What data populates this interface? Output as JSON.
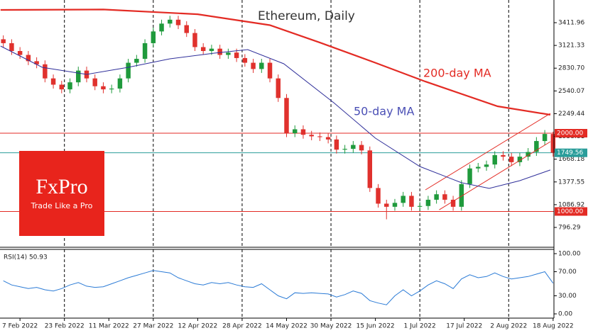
{
  "chart_data": [
    {
      "type": "candlestick",
      "title": "Ethereum, Daily",
      "x": [
        -6,
        -3,
        0,
        3,
        6,
        9,
        12,
        15,
        18,
        21,
        24,
        27,
        30,
        33,
        36,
        39,
        42,
        45,
        48,
        51,
        54,
        57,
        60,
        63,
        66,
        69,
        72,
        75,
        78,
        81,
        84,
        87,
        90,
        93,
        96,
        99,
        102,
        105,
        108,
        111,
        114,
        117,
        120,
        123,
        126,
        129,
        132,
        135,
        138,
        141,
        144,
        147,
        150,
        153,
        156,
        159,
        162,
        165,
        168,
        171,
        174,
        177,
        180,
        183,
        186,
        189,
        192
      ],
      "open": [
        3200,
        3150,
        3050,
        3000,
        2920,
        2880,
        2700,
        2620,
        2560,
        2650,
        2800,
        2700,
        2600,
        2560,
        2570,
        2700,
        2900,
        2950,
        3150,
        3300,
        3400,
        3450,
        3380,
        3280,
        3100,
        3050,
        3080,
        3000,
        3030,
        2960,
        2900,
        2820,
        2900,
        2700,
        2450,
        2000,
        2050,
        1980,
        1960,
        1950,
        1920,
        1790,
        1800,
        1850,
        1780,
        1300,
        1100,
        1060,
        1110,
        1200,
        1060,
        1070,
        1150,
        1220,
        1150,
        1060,
        1350,
        1550,
        1570,
        1600,
        1720,
        1700,
        1630,
        1700,
        1760,
        1900,
        1990
      ],
      "high": [
        3250,
        3200,
        3100,
        3050,
        2970,
        2930,
        2750,
        2670,
        2700,
        2850,
        2850,
        2750,
        2650,
        2620,
        2750,
        2950,
        3000,
        3200,
        3350,
        3450,
        3500,
        3500,
        3430,
        3330,
        3150,
        3130,
        3130,
        3080,
        3080,
        3010,
        2950,
        2950,
        2950,
        2750,
        2500,
        2100,
        2100,
        2030,
        2010,
        2000,
        1970,
        1850,
        1900,
        1900,
        1830,
        1350,
        1150,
        1160,
        1250,
        1250,
        1120,
        1200,
        1270,
        1270,
        1200,
        1400,
        1600,
        1620,
        1650,
        1770,
        1770,
        1750,
        1750,
        1810,
        1950,
        2040,
        2020
      ],
      "low": [
        3100,
        3000,
        2950,
        2870,
        2830,
        2650,
        2570,
        2510,
        2510,
        2600,
        2650,
        2550,
        2510,
        2510,
        2520,
        2650,
        2850,
        2900,
        3100,
        3250,
        3350,
        3330,
        3230,
        3050,
        3000,
        3000,
        2950,
        2950,
        2910,
        2850,
        2770,
        2770,
        2650,
        2400,
        1950,
        1950,
        1930,
        1910,
        1900,
        1870,
        1740,
        1740,
        1750,
        1730,
        1250,
        1050,
        900,
        1010,
        1060,
        1010,
        1010,
        1020,
        1100,
        1100,
        1010,
        1010,
        1300,
        1500,
        1520,
        1550,
        1650,
        1580,
        1580,
        1650,
        1710,
        1850,
        1700
      ],
      "close": [
        3150,
        3050,
        3000,
        2920,
        2880,
        2700,
        2620,
        2560,
        2650,
        2800,
        2700,
        2600,
        2560,
        2570,
        2700,
        2900,
        2950,
        3150,
        3300,
        3400,
        3450,
        3380,
        3280,
        3100,
        3050,
        3080,
        3000,
        3030,
        2960,
        2900,
        2820,
        2900,
        2700,
        2450,
        2000,
        2050,
        1980,
        1960,
        1950,
        1920,
        1790,
        1800,
        1850,
        1780,
        1300,
        1100,
        1060,
        1110,
        1200,
        1060,
        1070,
        1150,
        1220,
        1150,
        1060,
        1350,
        1550,
        1570,
        1600,
        1720,
        1700,
        1630,
        1700,
        1760,
        1900,
        1990,
        1750
      ],
      "up_color": "#1f9a3c",
      "down_color": "#e0312d",
      "series": [
        {
          "name": "200-day MA",
          "color": "#e32b24",
          "x": [
            -7,
            30,
            64,
            90,
            108,
            128,
            146,
            172,
            191
          ],
          "values": [
            3575,
            3580,
            3520,
            3380,
            3158,
            2900,
            2660,
            2344,
            2235
          ]
        },
        {
          "name": "50-day MA",
          "color": "#2f2f9a",
          "x": [
            -7,
            8,
            24,
            39,
            54,
            70,
            82,
            95,
            113,
            128,
            144,
            159,
            169,
            180,
            191
          ],
          "values": [
            3113,
            2842,
            2751,
            2842,
            2950,
            3023,
            3068,
            2887,
            2389,
            1937,
            1575,
            1367,
            1295,
            1394,
            1530
          ]
        }
      ],
      "trendlines": [
        {
          "color": "#e32b24",
          "x": [
            146,
            191
          ],
          "values": [
            1276,
            2253
          ]
        },
        {
          "color": "#e32b24",
          "x": [
            151,
            191
          ],
          "values": [
            1022,
            1891
          ]
        }
      ],
      "hlines": [
        {
          "value": 2000,
          "label": "2000.00",
          "color": "#e32b24"
        },
        {
          "value": 1000,
          "label": "1000.00",
          "color": "#e32b24"
        },
        {
          "value": 1749.56,
          "label": "1749.56",
          "color": "#2a9d9a"
        }
      ],
      "xlim": [
        -7.2,
        192.3
      ],
      "xticks": [
        {
          "value": 0,
          "label": "7 Feb 2022"
        },
        {
          "value": 16,
          "label": "23 Feb 2022"
        },
        {
          "value": 32,
          "label": "11 Mar 2022"
        },
        {
          "value": 48,
          "label": "27 Mar 2022"
        },
        {
          "value": 64,
          "label": "12 Apr 2022"
        },
        {
          "value": 80,
          "label": "28 Apr 2022"
        },
        {
          "value": 96,
          "label": "14 May 2022"
        },
        {
          "value": 112,
          "label": "30 May 2022"
        },
        {
          "value": 128,
          "label": "15 Jun 2022"
        },
        {
          "value": 144,
          "label": "1 Jul 2022"
        },
        {
          "value": 160,
          "label": "17 Jul 2022"
        },
        {
          "value": 176,
          "label": "2 Aug 2022"
        },
        {
          "value": 192,
          "label": "18 Aug 2022"
        }
      ],
      "ylim": [
        551.9,
        3701.6
      ],
      "yticks": [
        3411.96,
        3121.33,
        {
          "value": 2830.7,
          "label": "2830.70"
        },
        2540.07,
        2249.44,
        1958.81,
        1668.18,
        1377.55,
        1086.92,
        796.29
      ],
      "grid": true
    },
    {
      "type": "line",
      "title": "RSI(14) 50.93",
      "color": "#2b7bd6",
      "x": [
        -6,
        -3,
        0,
        3,
        6,
        9,
        12,
        15,
        18,
        21,
        24,
        27,
        30,
        33,
        36,
        39,
        42,
        45,
        48,
        51,
        54,
        57,
        60,
        63,
        66,
        69,
        72,
        75,
        78,
        81,
        84,
        87,
        90,
        93,
        96,
        99,
        102,
        105,
        108,
        111,
        114,
        117,
        120,
        123,
        126,
        129,
        132,
        135,
        138,
        141,
        144,
        147,
        150,
        153,
        156,
        159,
        162,
        165,
        168,
        171,
        174,
        177,
        180,
        183,
        186,
        189,
        192
      ],
      "values": [
        55,
        48,
        45,
        42,
        44,
        40,
        38,
        42,
        48,
        52,
        46,
        44,
        45,
        50,
        55,
        60,
        64,
        68,
        72,
        70,
        68,
        60,
        55,
        50,
        48,
        52,
        50,
        52,
        48,
        45,
        44,
        50,
        40,
        30,
        25,
        35,
        34,
        35,
        34,
        33,
        28,
        32,
        38,
        34,
        22,
        18,
        15,
        30,
        40,
        30,
        38,
        48,
        55,
        50,
        42,
        58,
        65,
        60,
        62,
        68,
        62,
        58,
        60,
        62,
        66,
        70,
        51
      ],
      "xlim": [
        -7.2,
        192.3
      ],
      "ylim": [
        -7.06,
        107.06
      ],
      "yticks": [
        {
          "value": 100,
          "label": "100.00"
        },
        {
          "value": 70,
          "label": "70.00"
        },
        {
          "value": 30,
          "label": "30.00"
        },
        {
          "value": 0,
          "label": "0.00"
        }
      ]
    }
  ],
  "logo": {
    "name": "FxPro",
    "tagline": "Trade Like a Pro"
  }
}
